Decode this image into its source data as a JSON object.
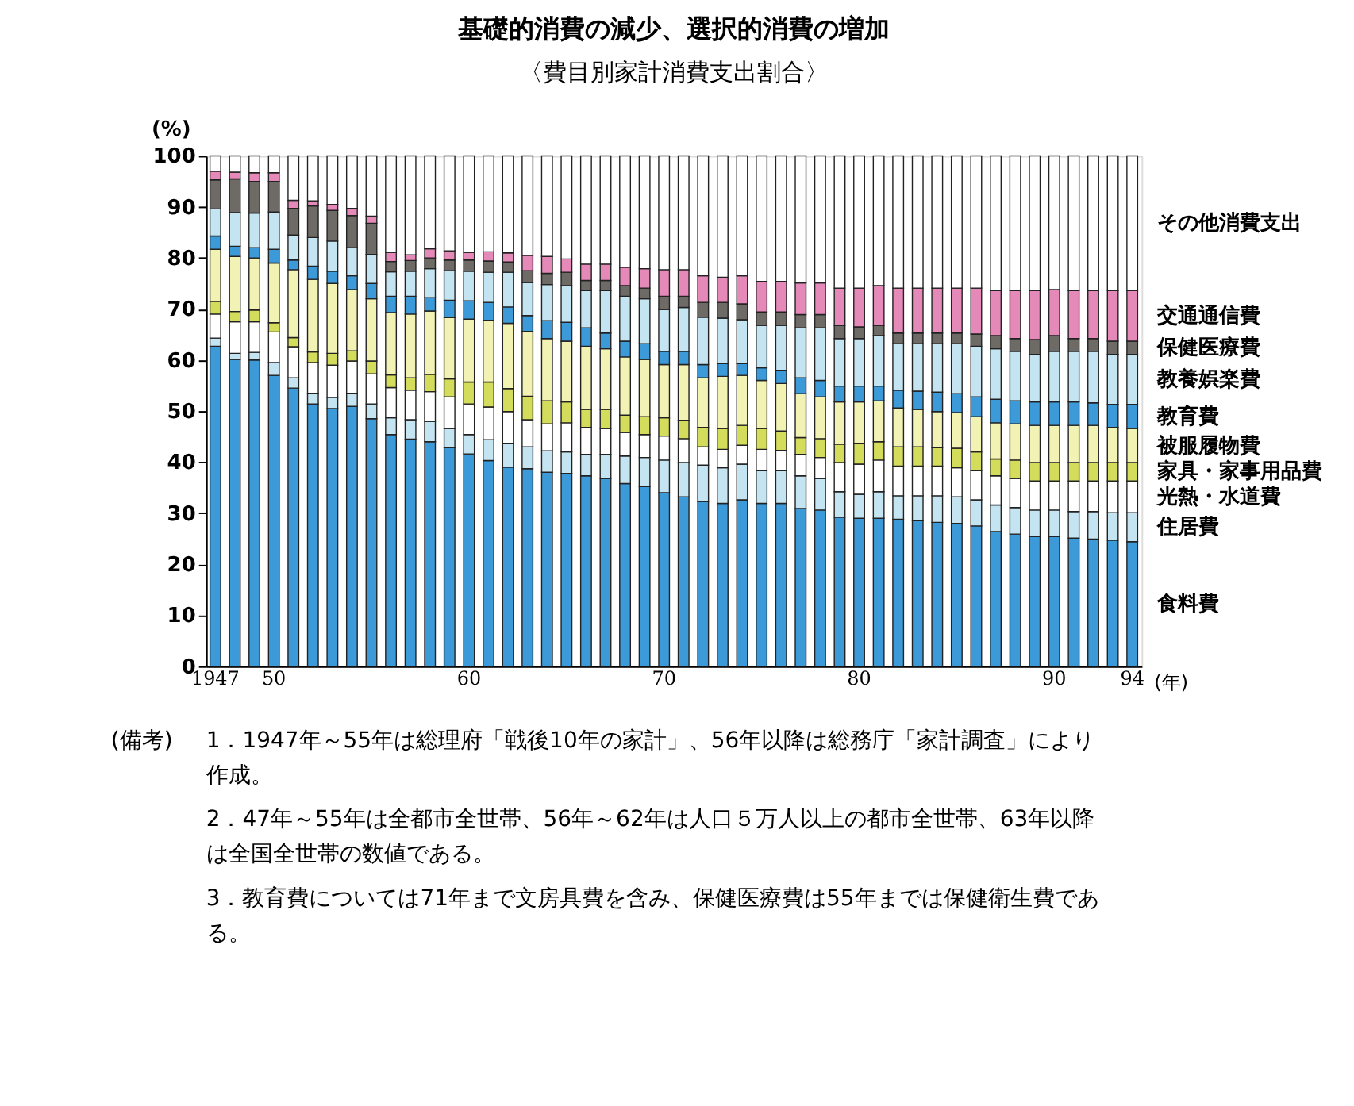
{
  "chart_data": {
    "type": "bar",
    "stacked": true,
    "title": "基礎的消費の減少、選択的消費の増加",
    "subtitle": "〈費目別家計消費支出割合〉",
    "ylabel": "(%)",
    "xlabel": "(年)",
    "ylim": [
      0,
      100
    ],
    "yticks": [
      0,
      10,
      20,
      30,
      40,
      50,
      60,
      70,
      80,
      90,
      100
    ],
    "categories": [
      "1947",
      null,
      null,
      "50",
      null,
      null,
      null,
      null,
      null,
      null,
      null,
      null,
      null,
      "60",
      null,
      null,
      null,
      null,
      null,
      null,
      null,
      null,
      null,
      "70",
      null,
      null,
      null,
      null,
      null,
      null,
      null,
      null,
      null,
      "80",
      null,
      null,
      null,
      null,
      null,
      null,
      null,
      null,
      null,
      "90",
      null,
      null,
      null,
      "94"
    ],
    "series": [
      {
        "name": "食料費",
        "color": "#3d9ad8",
        "values": [
          62.7,
          60.1,
          60.0,
          57.0,
          54.5,
          51.4,
          50.5,
          50.9,
          48.5,
          45.4,
          44.5,
          44.0,
          42.8,
          41.6,
          40.3,
          39.0,
          38.7,
          38.0,
          37.8,
          37.3,
          36.8,
          35.8,
          35.2,
          34.0,
          33.2,
          32.3,
          31.9,
          32.6,
          31.9,
          31.9,
          30.9,
          30.6,
          29.2,
          29.0,
          29.0,
          28.8,
          28.5,
          28.2,
          28.0,
          27.5,
          26.4,
          25.9,
          25.4,
          25.4,
          25.1,
          24.9,
          24.7,
          24.4
        ]
      },
      {
        "name": "住居費",
        "color": "#c4e4f2",
        "values": [
          1.6,
          1.2,
          1.5,
          2.5,
          2.0,
          2.1,
          2.2,
          2.6,
          2.9,
          3.3,
          3.8,
          4.0,
          3.8,
          3.8,
          4.1,
          4.7,
          4.3,
          4.2,
          4.2,
          4.2,
          4.7,
          5.4,
          5.7,
          6.4,
          6.7,
          7.1,
          7.0,
          7.0,
          6.4,
          6.4,
          6.4,
          6.2,
          5.0,
          4.7,
          5.2,
          4.6,
          4.9,
          5.2,
          5.2,
          5.1,
          5.2,
          5.2,
          5.2,
          5.2,
          5.2,
          5.4,
          5.4,
          5.7
        ]
      },
      {
        "name": "光熱・水道費",
        "color": "#ffffff",
        "values": [
          4.7,
          6.2,
          6.0,
          6.0,
          6.1,
          6.0,
          6.3,
          6.3,
          5.9,
          5.9,
          5.8,
          5.8,
          6.2,
          6.0,
          6.4,
          6.2,
          5.3,
          5.3,
          5.7,
          5.3,
          5.1,
          4.6,
          4.5,
          4.7,
          4.7,
          3.6,
          3.6,
          3.7,
          4.2,
          4.0,
          4.2,
          4.1,
          5.7,
          5.9,
          6.2,
          5.8,
          5.8,
          5.8,
          5.7,
          5.7,
          5.7,
          5.7,
          5.7,
          5.7,
          6.0,
          6.0,
          6.2,
          6.2
        ]
      },
      {
        "name": "家具・家事用品費",
        "color": "#d4dc5c",
        "values": [
          2.5,
          2.0,
          2.3,
          1.8,
          1.8,
          2.1,
          2.3,
          2.0,
          2.5,
          2.5,
          2.4,
          3.4,
          3.5,
          4.3,
          4.9,
          4.5,
          4.6,
          4.5,
          4.1,
          3.5,
          3.7,
          3.4,
          3.5,
          3.6,
          3.6,
          3.8,
          4.1,
          3.9,
          4.1,
          3.8,
          3.3,
          3.7,
          3.6,
          4.1,
          3.6,
          3.8,
          3.8,
          3.6,
          3.8,
          3.7,
          3.3,
          3.6,
          3.6,
          3.6,
          3.6,
          3.6,
          3.6,
          3.6
        ]
      },
      {
        "name": "被服履物費",
        "color": "#f2f2b4",
        "values": [
          10.2,
          10.8,
          10.2,
          11.7,
          13.3,
          14.2,
          13.7,
          12.0,
          12.2,
          12.2,
          12.5,
          12.4,
          12.0,
          12.3,
          12.1,
          12.8,
          12.7,
          12.2,
          11.9,
          12.4,
          11.9,
          11.4,
          11.2,
          10.4,
          10.9,
          9.7,
          10.2,
          9.8,
          9.4,
          9.3,
          8.6,
          8.2,
          8.3,
          8.1,
          8.0,
          7.6,
          7.3,
          7.1,
          7.0,
          6.9,
          7.1,
          7.1,
          7.3,
          7.3,
          7.3,
          7.3,
          6.9,
          6.7
        ]
      },
      {
        "name": "教育費",
        "color": "#3d9ad8",
        "values": [
          2.6,
          2.0,
          2.0,
          2.7,
          1.9,
          2.6,
          2.4,
          2.7,
          3.0,
          3.2,
          3.5,
          2.6,
          3.4,
          3.6,
          3.5,
          3.2,
          3.1,
          3.5,
          3.7,
          3.6,
          3.1,
          3.1,
          3.1,
          2.6,
          2.6,
          2.6,
          2.5,
          2.3,
          2.5,
          2.6,
          3.1,
          3.2,
          3.1,
          3.1,
          2.9,
          3.5,
          3.6,
          3.8,
          3.7,
          3.9,
          4.6,
          4.5,
          4.6,
          4.6,
          4.6,
          4.4,
          4.5,
          4.7
        ]
      },
      {
        "name": "教養娯楽費",
        "color": "#c4e4f2",
        "values": [
          5.3,
          6.6,
          6.8,
          7.3,
          4.9,
          5.6,
          5.9,
          5.5,
          5.7,
          4.8,
          4.9,
          5.7,
          5.8,
          5.8,
          5.9,
          6.8,
          6.5,
          7.1,
          7.2,
          7.3,
          8.3,
          8.8,
          8.8,
          8.2,
          8.6,
          9.3,
          8.9,
          8.6,
          8.3,
          8.8,
          9.8,
          10.3,
          9.3,
          9.3,
          9.9,
          9.1,
          9.3,
          9.5,
          9.8,
          9.9,
          9.9,
          9.7,
          9.3,
          9.9,
          9.9,
          10.1,
          9.8,
          9.8
        ]
      },
      {
        "name": "保健医療費",
        "color": "#6e6a66",
        "values": [
          5.7,
          6.6,
          6.2,
          6.0,
          5.2,
          6.2,
          6.0,
          6.3,
          6.1,
          2.0,
          2.1,
          2.1,
          2.1,
          2.2,
          2.2,
          2.0,
          2.3,
          2.2,
          2.6,
          2.0,
          2.0,
          2.1,
          2.1,
          2.6,
          2.2,
          2.9,
          3.1,
          3.1,
          2.6,
          2.6,
          2.6,
          2.6,
          2.6,
          2.3,
          2.0,
          2.1,
          2.1,
          2.1,
          2.1,
          2.4,
          2.6,
          2.5,
          2.9,
          3.1,
          2.5,
          2.5,
          2.6,
          2.6
        ]
      },
      {
        "name": "交通通信費",
        "color": "#e489b8",
        "values": [
          1.7,
          1.3,
          1.7,
          1.7,
          1.6,
          1.0,
          1.2,
          1.4,
          1.4,
          1.8,
          1.1,
          1.8,
          1.8,
          1.5,
          1.8,
          1.8,
          3.0,
          3.3,
          2.6,
          3.2,
          3.2,
          3.6,
          3.8,
          5.2,
          5.2,
          5.2,
          4.9,
          5.5,
          6.0,
          6.0,
          6.2,
          6.2,
          7.3,
          7.6,
          7.8,
          8.8,
          8.8,
          8.8,
          8.8,
          9.0,
          8.8,
          9.4,
          9.6,
          9.0,
          9.4,
          9.4,
          9.9,
          9.9
        ]
      },
      {
        "name": "その他消費支出",
        "color": "#ffffff",
        "values": [
          3.0,
          3.2,
          3.3,
          3.3,
          8.7,
          8.8,
          9.5,
          10.3,
          11.8,
          18.9,
          19.4,
          18.2,
          18.6,
          18.9,
          18.8,
          19.0,
          19.5,
          19.7,
          20.2,
          21.2,
          21.2,
          21.8,
          22.1,
          22.3,
          22.3,
          23.5,
          23.8,
          23.5,
          24.6,
          24.6,
          24.9,
          24.9,
          25.9,
          25.9,
          25.4,
          25.9,
          25.9,
          25.9,
          25.9,
          25.9,
          26.4,
          26.4,
          26.4,
          26.2,
          26.4,
          26.4,
          26.4,
          26.4
        ]
      }
    ],
    "annotations": [
      "(備考)",
      "1．1947年～55年は総理府「戦後10年の家計」、56年以降は総務庁「家計調査」により作成。",
      "2．47年～55年は全都市全世帯、56年～62年は人口５万人以上の都市全世帯、63年以降は全国全世帯の数値である。",
      "3．教育費については71年まで文房具費を含み、保健医療費は55年までは保健衛生費である。"
    ]
  }
}
